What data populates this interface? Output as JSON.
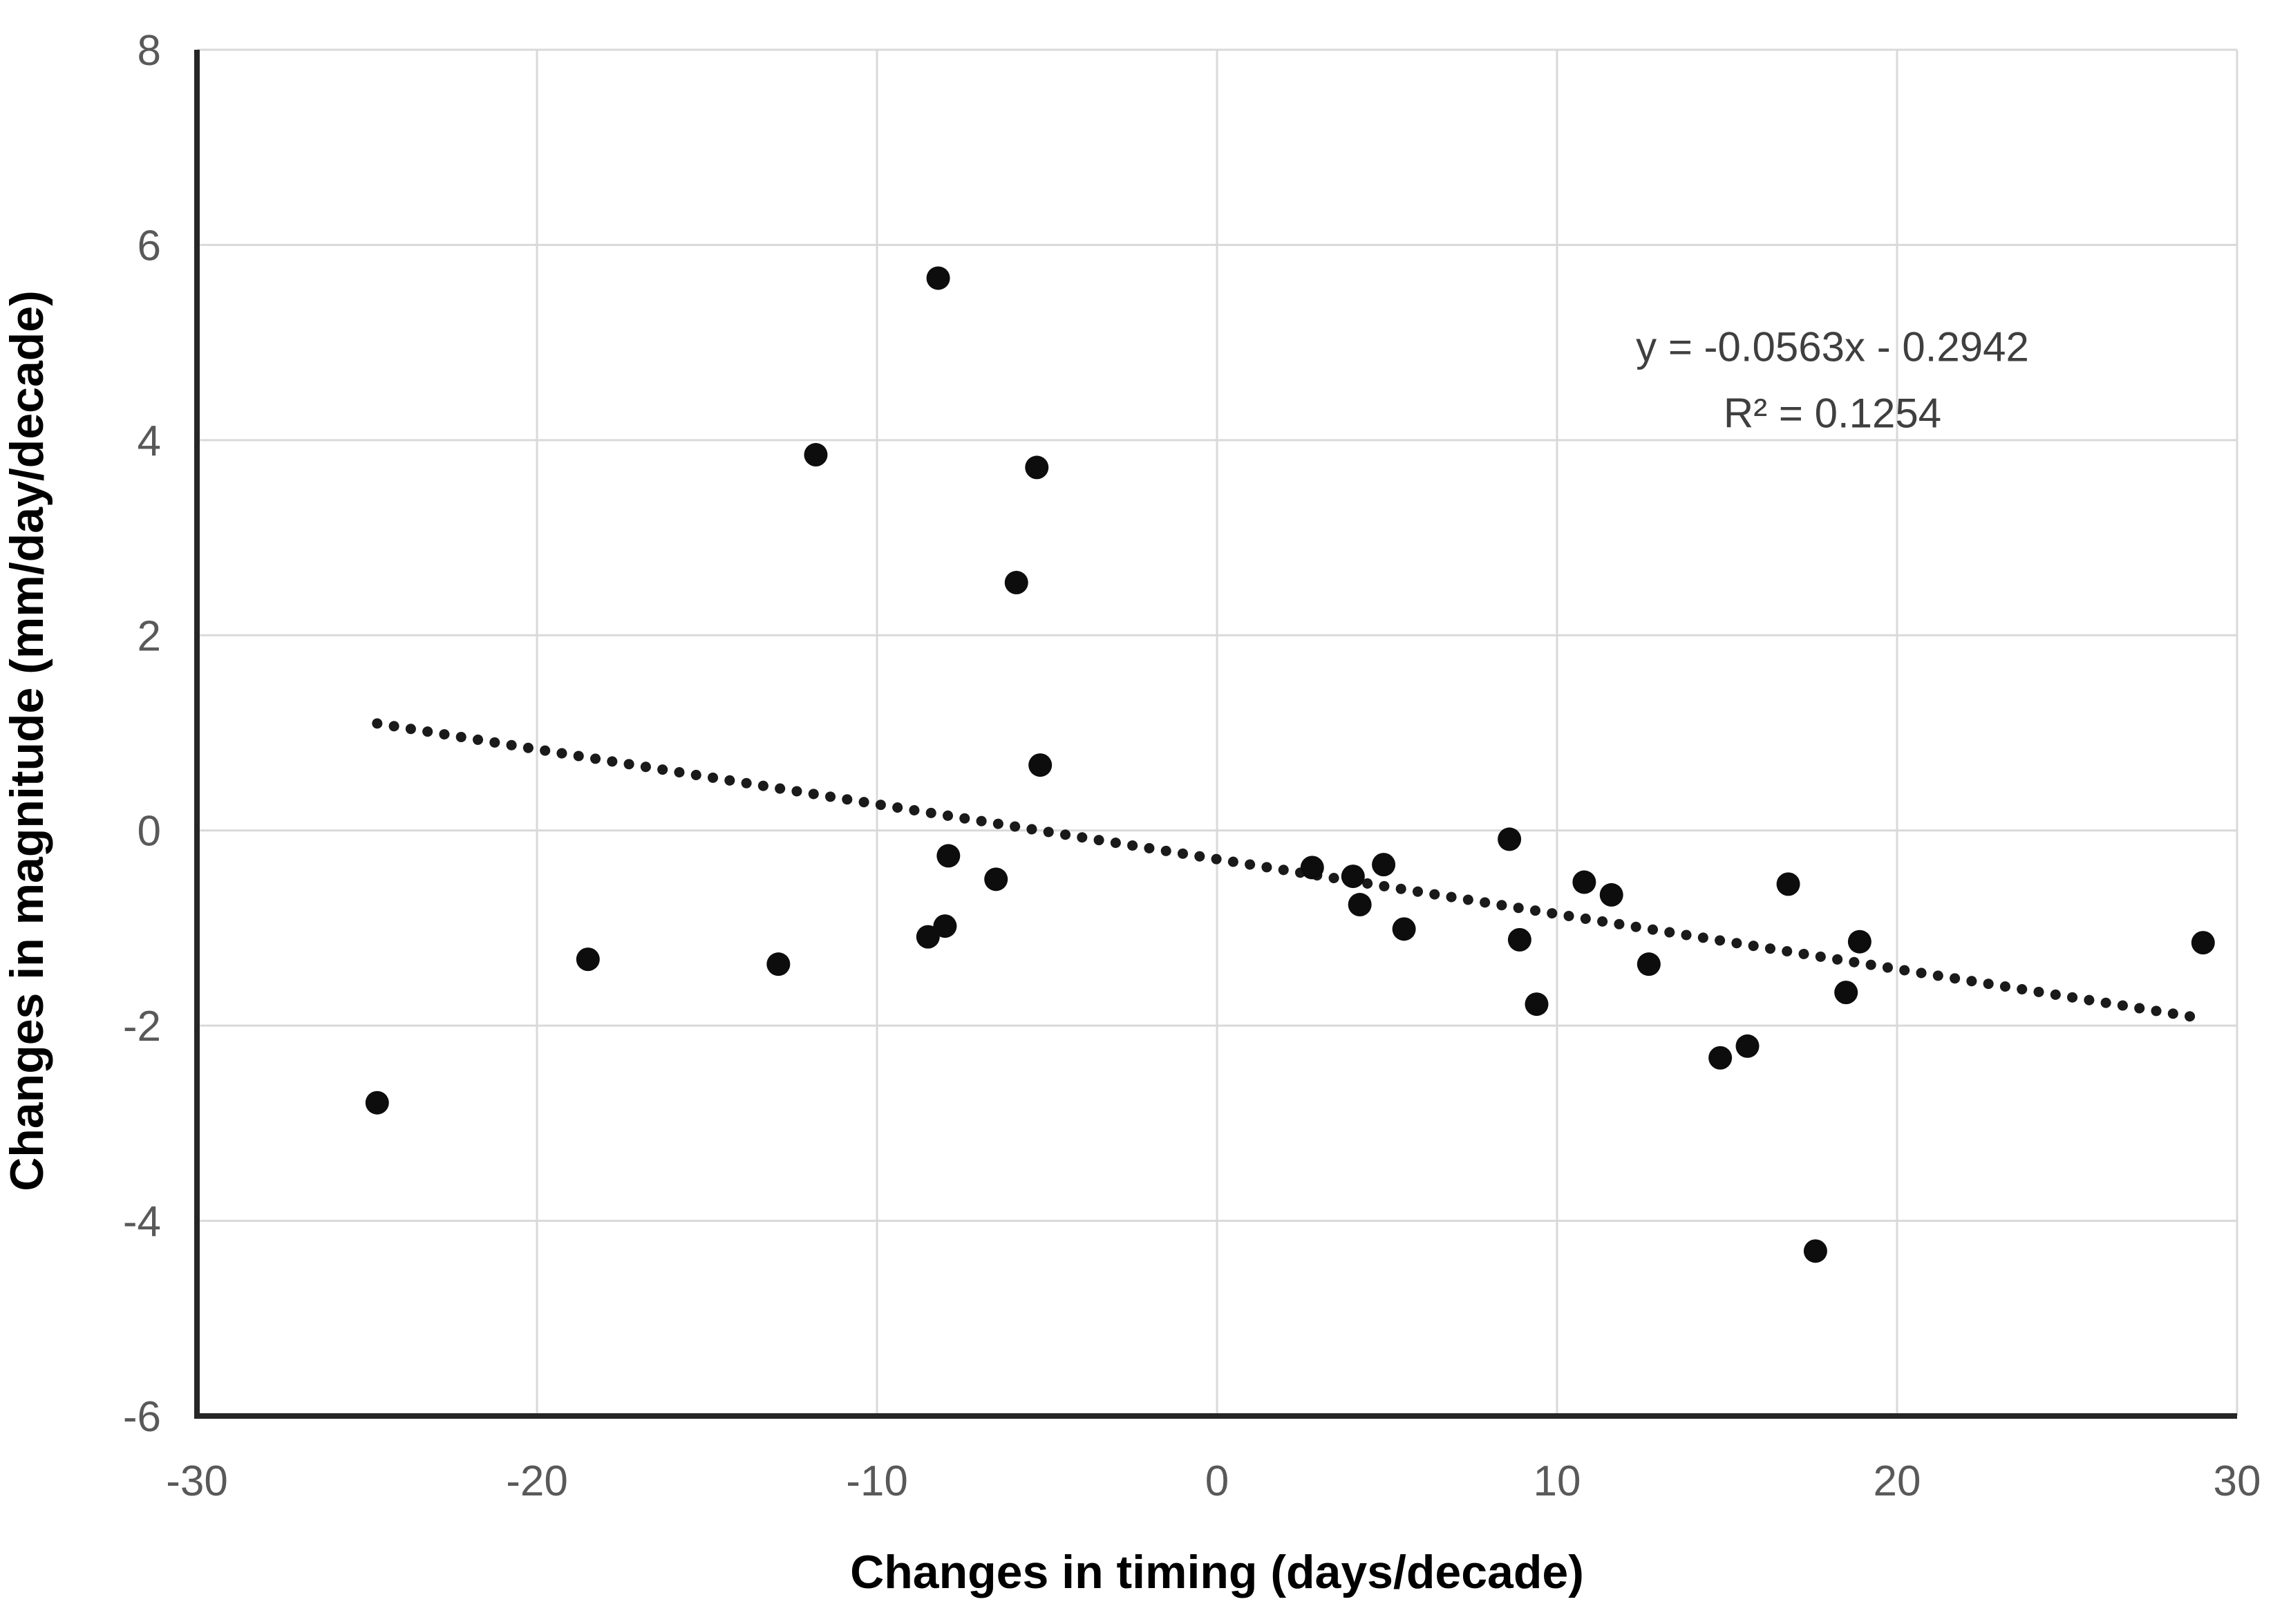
{
  "chart_data": {
    "type": "scatter",
    "title": "",
    "xlabel": "Changes in timing (days/decade)",
    "ylabel": "Changes in magnitude (mm/day/decade)",
    "xlim": [
      -30,
      30
    ],
    "ylim": [
      -6,
      8
    ],
    "x_ticks": [
      -30,
      -20,
      -10,
      0,
      10,
      20,
      30
    ],
    "y_ticks": [
      8,
      6,
      4,
      2,
      0,
      -2,
      -4,
      -6
    ],
    "grid": true,
    "legend": "none",
    "points": [
      [
        -24.7,
        -2.79
      ],
      [
        -18.5,
        -1.32
      ],
      [
        -12.9,
        -1.37
      ],
      [
        -11.8,
        3.85
      ],
      [
        -8.2,
        5.66
      ],
      [
        -8.5,
        -1.09
      ],
      [
        -8.0,
        -0.98
      ],
      [
        -7.9,
        -0.26
      ],
      [
        -6.5,
        -0.5
      ],
      [
        -5.9,
        2.54
      ],
      [
        -5.3,
        3.72
      ],
      [
        -5.2,
        0.67
      ],
      [
        2.8,
        -0.38
      ],
      [
        4.0,
        -0.47
      ],
      [
        4.2,
        -0.76
      ],
      [
        4.9,
        -0.35
      ],
      [
        5.5,
        -1.01
      ],
      [
        8.6,
        -0.09
      ],
      [
        8.9,
        -1.12
      ],
      [
        9.4,
        -1.78
      ],
      [
        10.8,
        -0.53
      ],
      [
        11.6,
        -0.66
      ],
      [
        12.7,
        -1.37
      ],
      [
        14.8,
        -2.33
      ],
      [
        15.6,
        -2.21
      ],
      [
        16.8,
        -0.55
      ],
      [
        17.6,
        -4.31
      ],
      [
        18.5,
        -1.66
      ],
      [
        18.9,
        -1.14
      ],
      [
        29.0,
        -1.15
      ]
    ],
    "trendline": {
      "style": "dotted",
      "slope": -0.0563,
      "intercept": -0.2942,
      "x_start": -24.7,
      "x_end": 29.0
    },
    "annotation": {
      "line1": "y = -0.0563x - 0.2942",
      "line2": "R² = 0.1254",
      "x": 18.1,
      "y1": 4.96,
      "y2": 4.28
    },
    "colors": {
      "background": "#ffffff",
      "point": "#0d0d0d",
      "trendline": "#1a1a1a",
      "gridline": "#d9d9d9",
      "axis": "#262626",
      "tick_label": "#595959",
      "annotation_text": "#3f3f3f",
      "title_text": "#000000"
    }
  }
}
